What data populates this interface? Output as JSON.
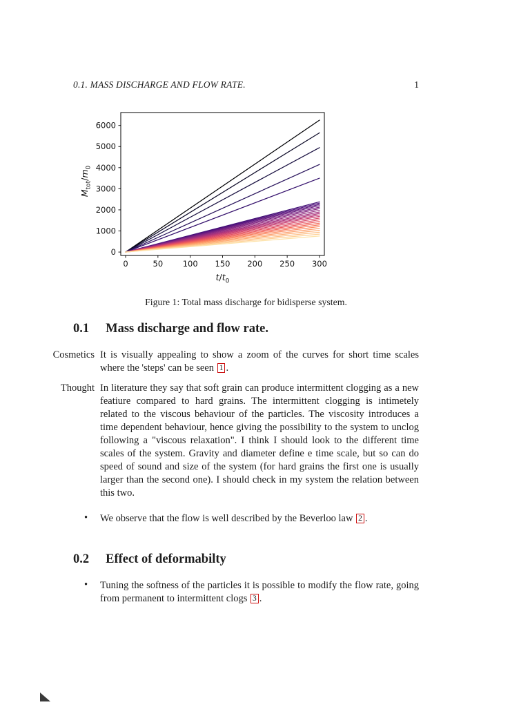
{
  "page": {
    "header": {
      "running_title": "0.1. MASS DISCHARGE AND FLOW RATE.",
      "page_number": "1"
    },
    "figure_caption": "Figure 1: Total mass discharge for bidisperse system.",
    "section1": {
      "number": "0.1",
      "title": "Mass discharge and flow rate."
    },
    "section2": {
      "number": "0.2",
      "title": "Effect of deformabilty"
    },
    "cosmetics": {
      "label": "Cosmetics",
      "text": "It is visually appealing to show a zoom of the curves for short time scales where the 'steps' can be seen ",
      "ref": "1",
      "after": "."
    },
    "thought": {
      "label": "Thought",
      "text": "In literature they say that soft grain can produce intermittent clogging as a new featiure compared to hard grains. The intermittent clogging is intimetely related to the viscous behaviour of the particles. The viscosity introduces a time dependent behaviour, hence giving the possibility to the system to unclog following a \"viscous relaxation\". I think I should look to the different time scales of the system. Gravity and diameter define e time scale, but so can do speed of sound and size of the system (for hard grains the first one is usually larger than the second one). I should check in my system the relation between this two."
    },
    "bullet1": {
      "marker": "•",
      "text": "We observe that the flow is well described by the Beverloo law ",
      "ref": "2",
      "after": "."
    },
    "bullet2": {
      "marker": "•",
      "text": "Tuning the softness of the particles it is possible to modify the flow rate, going from permanent to intermittent clogs ",
      "ref": "3",
      "after": "."
    }
  },
  "chart_data": {
    "type": "line",
    "title": "",
    "xlabel": "t/t_{0}",
    "ylabel": "M_{tot}/m_{0}",
    "xlim": [
      0,
      300
    ],
    "ylim": [
      0,
      6450
    ],
    "xticks": [
      0,
      50,
      100,
      150,
      200,
      250,
      300
    ],
    "yticks": [
      0,
      1000,
      2000,
      3000,
      4000,
      5000,
      6000
    ],
    "grid": false,
    "legend": "none",
    "x": [
      0,
      300
    ],
    "note": "straight lines fanning from origin; colors follow magma colormap dark-to-light with decreasing slope",
    "series": [
      {
        "y_end": 6250,
        "color": "#000004"
      },
      {
        "y_end": 5650,
        "color": "#0c0927"
      },
      {
        "y_end": 4950,
        "color": "#191041"
      },
      {
        "y_end": 4150,
        "color": "#26115a"
      },
      {
        "y_end": 3500,
        "color": "#34106c"
      },
      {
        "y_end": 2380,
        "color": "#421076"
      },
      {
        "y_end": 2320,
        "color": "#50127c"
      },
      {
        "y_end": 2260,
        "color": "#5d177f"
      },
      {
        "y_end": 2200,
        "color": "#6b1d81"
      },
      {
        "y_end": 2130,
        "color": "#782282"
      },
      {
        "y_end": 2060,
        "color": "#862781"
      },
      {
        "y_end": 1980,
        "color": "#942c80"
      },
      {
        "y_end": 1900,
        "color": "#a1307e"
      },
      {
        "y_end": 1830,
        "color": "#af357b"
      },
      {
        "y_end": 1760,
        "color": "#bd3a77"
      },
      {
        "y_end": 1690,
        "color": "#ca4071"
      },
      {
        "y_end": 1610,
        "color": "#d7486a"
      },
      {
        "y_end": 1530,
        "color": "#e25063"
      },
      {
        "y_end": 1450,
        "color": "#ec5c5f"
      },
      {
        "y_end": 1370,
        "color": "#f36b5c"
      },
      {
        "y_end": 1290,
        "color": "#f97b5d"
      },
      {
        "y_end": 1210,
        "color": "#fc8c61"
      },
      {
        "y_end": 1120,
        "color": "#fd9d69"
      },
      {
        "y_end": 1030,
        "color": "#feae74"
      },
      {
        "y_end": 940,
        "color": "#febf84"
      },
      {
        "y_end": 850,
        "color": "#fed095"
      },
      {
        "y_end": 760,
        "color": "#fde2a8"
      }
    ]
  }
}
